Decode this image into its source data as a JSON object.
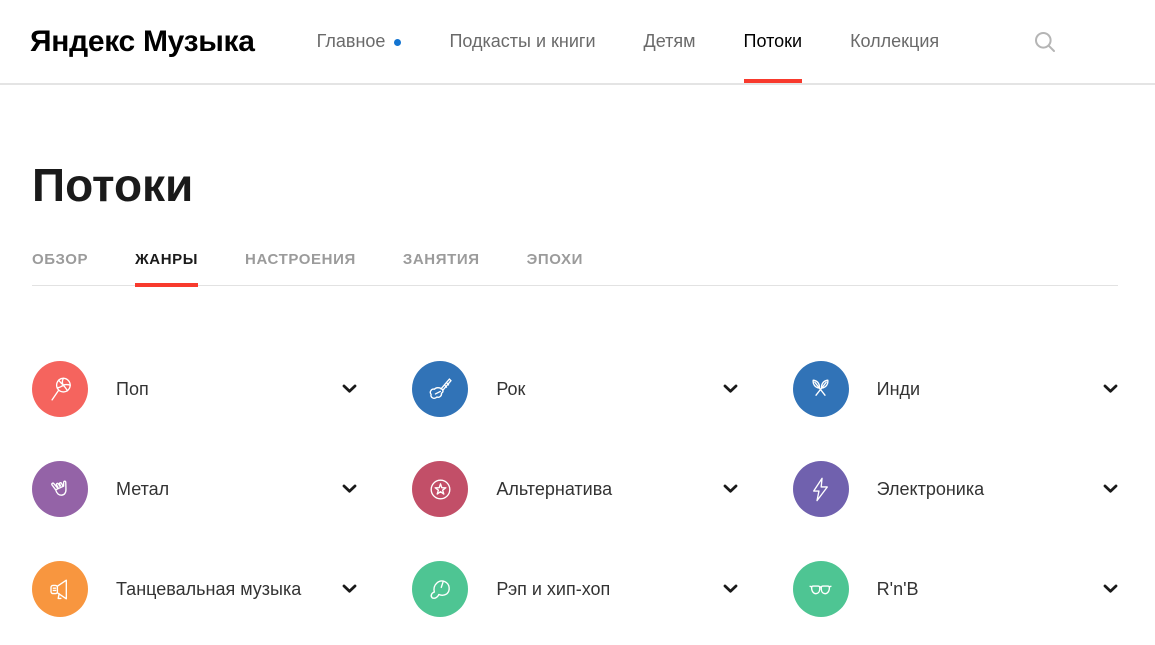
{
  "header": {
    "logo": "Яндекс Музыка",
    "nav": [
      {
        "id": "main",
        "label": "Главное",
        "active": false,
        "dot": true
      },
      {
        "id": "podcasts-books",
        "label": "Подкасты и книги",
        "active": false,
        "dot": false
      },
      {
        "id": "kids",
        "label": "Детям",
        "active": false,
        "dot": false
      },
      {
        "id": "streams",
        "label": "Потоки",
        "active": true,
        "dot": false
      },
      {
        "id": "collection",
        "label": "Коллекция",
        "active": false,
        "dot": false
      }
    ],
    "search_icon": "search-icon"
  },
  "page": {
    "title": "Потоки",
    "tabs": [
      {
        "id": "overview",
        "label": "ОБЗОР",
        "active": false
      },
      {
        "id": "genres",
        "label": "ЖАНРЫ",
        "active": true
      },
      {
        "id": "moods",
        "label": "НАСТРОЕНИЯ",
        "active": false
      },
      {
        "id": "activity",
        "label": "ЗАНЯТИЯ",
        "active": false
      },
      {
        "id": "epochs",
        "label": "ЭПОХИ",
        "active": false
      }
    ]
  },
  "genres": [
    {
      "id": "pop",
      "label": "Поп",
      "icon": "lollipop-icon",
      "color": "#f5645e"
    },
    {
      "id": "rock",
      "label": "Рок",
      "icon": "guitar-icon",
      "color": "#3173b7"
    },
    {
      "id": "indie",
      "label": "Инди",
      "icon": "feathers-icon",
      "color": "#3173b7"
    },
    {
      "id": "metal",
      "label": "Метал",
      "icon": "rock-hand-icon",
      "color": "#9463a7"
    },
    {
      "id": "alternative",
      "label": "Альтернатива",
      "icon": "star-circle-icon",
      "color": "#c24f68"
    },
    {
      "id": "electronic",
      "label": "Электроника",
      "icon": "lightning-icon",
      "color": "#7061ae"
    },
    {
      "id": "dance",
      "label": "Танцевальная музыка",
      "icon": "megaphone-icon",
      "color": "#f8963f"
    },
    {
      "id": "rap-hiphop",
      "label": "Рэп и хип-хоп",
      "icon": "cap-icon",
      "color": "#4ec593"
    },
    {
      "id": "rnb",
      "label": "R'n'B",
      "icon": "sunglasses-icon",
      "color": "#4ec593"
    }
  ],
  "ui": {
    "chevron_icon": "chevron-down-icon"
  },
  "colors": {
    "accent_red": "#f83a2d",
    "dot_blue": "#1374d1",
    "nav_gray": "#6a6a6a",
    "tab_inactive_gray": "#9b9b9b",
    "search_icon_gray": "#b5b5b5",
    "border_gray": "#e4e4e4"
  }
}
